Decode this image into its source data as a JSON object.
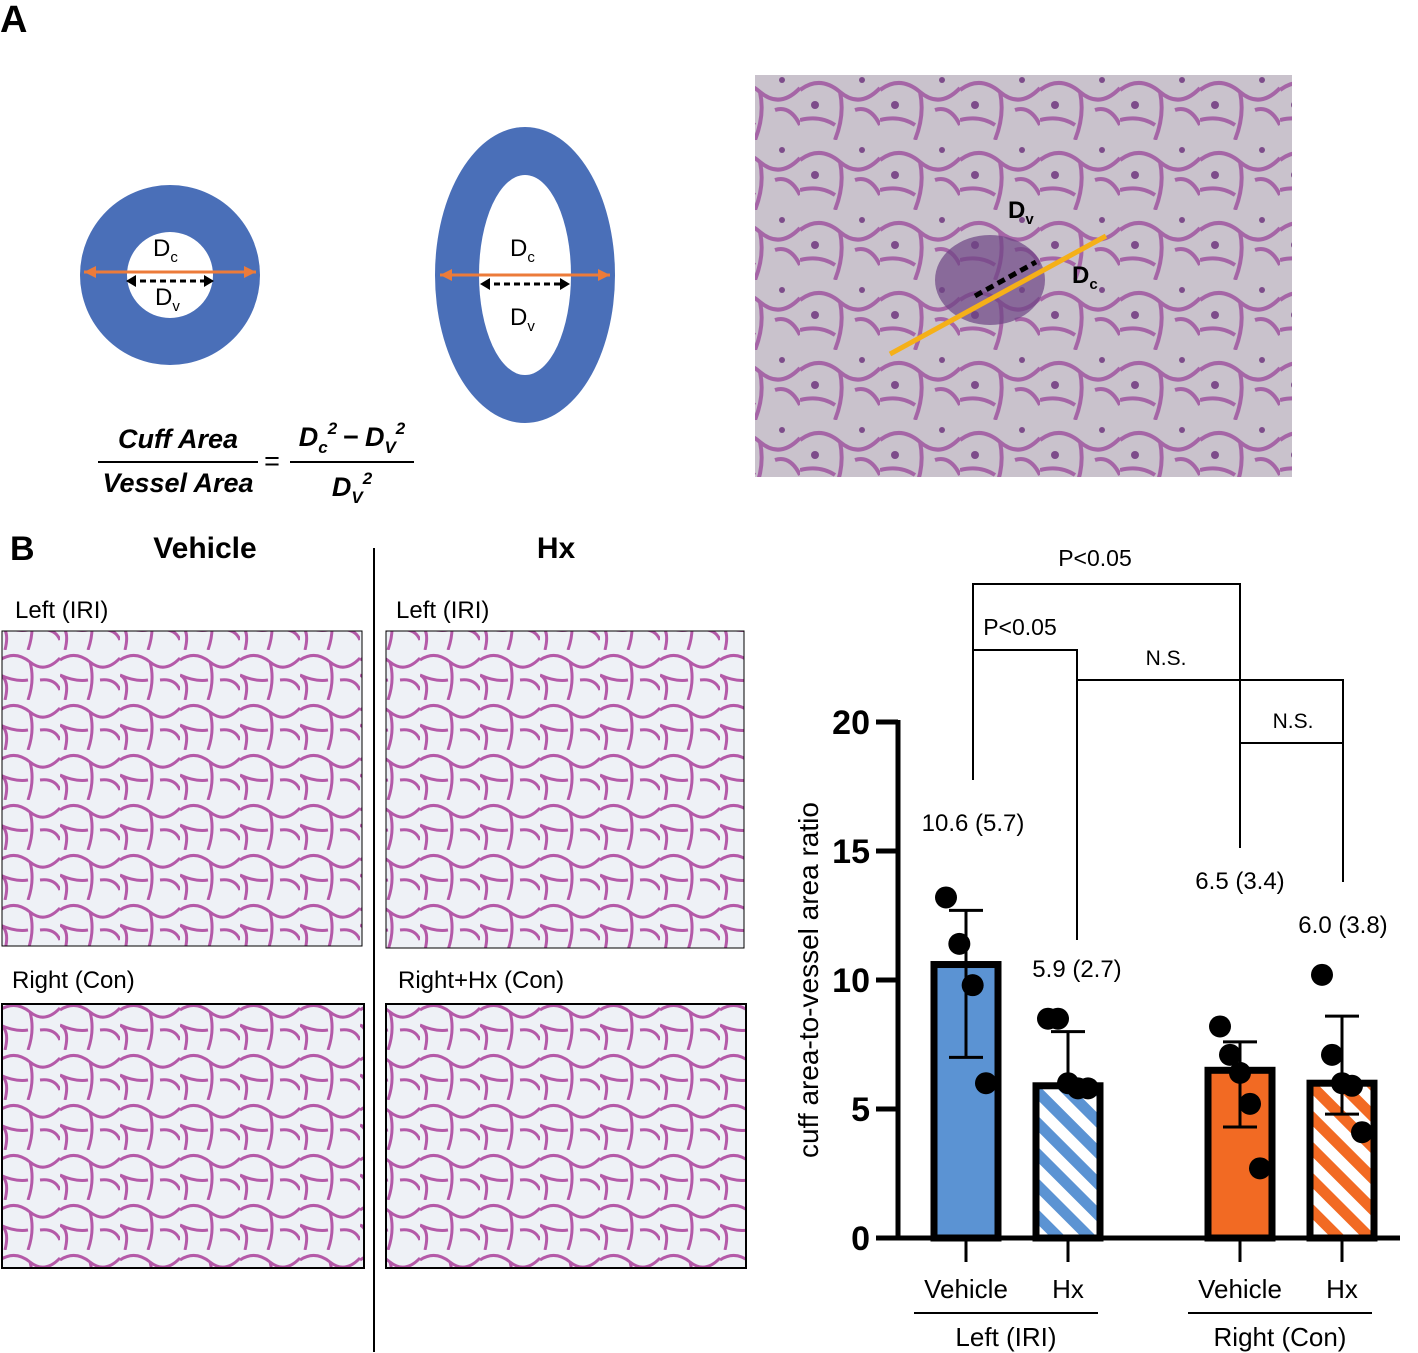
{
  "panel_a": {
    "label": "A",
    "circle_dc": {
      "main": "D",
      "sub": "c"
    },
    "circle_dv": {
      "main": "D",
      "sub": "v"
    },
    "ellipse_dc": {
      "main": "D",
      "sub": "c"
    },
    "ellipse_dv": {
      "main": "D",
      "sub": "v"
    },
    "micrograph_dv": {
      "main": "D",
      "sub": "v"
    },
    "micrograph_dc": {
      "main": "D",
      "sub": "c"
    },
    "formula": {
      "left_numerator": "Cuff Area",
      "left_denominator": "Vessel Area",
      "equals": "=",
      "right_numerator": [
        {
          "main": "D",
          "sub": "c",
          "sup": "2"
        },
        "−",
        {
          "main": "D",
          "sub": "V",
          "sup": "2"
        }
      ],
      "right_denominator": {
        "main": "D",
        "sub": "V",
        "sup": "2"
      }
    }
  },
  "panel_b": {
    "label": "B",
    "columns": [
      "Vehicle",
      "Hx"
    ],
    "images": [
      "Left (IRI)",
      "Left (IRI)",
      "Right (Con)",
      "Right+Hx (Con)"
    ]
  },
  "chart_data": {
    "type": "bar",
    "y_label": "cuff area-to-vessel area ratio",
    "categories": [
      "Vehicle",
      "Hx",
      "Vehicle",
      "Hx"
    ],
    "groups": [
      {
        "name": "Left (IRI)",
        "span": [
          0,
          1
        ]
      },
      {
        "name": "Right (Con)",
        "span": [
          2,
          3
        ]
      }
    ],
    "values": [
      10.6,
      5.9,
      6.5,
      6.0
    ],
    "value_labels": [
      "10.6 (5.7)",
      "5.9 (2.7)",
      "6.5 (3.4)",
      "6.0 (3.8)"
    ],
    "error_bars": [
      [
        7.0,
        12.7
      ],
      [
        5.9,
        8.0
      ],
      [
        4.3,
        7.6
      ],
      [
        4.8,
        8.6
      ]
    ],
    "points": [
      [
        13.2,
        11.4,
        9.8,
        6.0
      ],
      [
        8.5,
        8.5,
        6.0,
        5.8,
        5.8
      ],
      [
        8.2,
        7.1,
        6.4,
        5.2,
        2.7
      ],
      [
        10.2,
        7.1,
        6.0,
        5.9,
        4.1
      ]
    ],
    "colors": [
      "#5b93d3",
      "#5b93d3",
      "#f26a23",
      "#f26a23"
    ],
    "hatched": [
      false,
      true,
      false,
      true
    ],
    "ylim": [
      0,
      20
    ],
    "yticks": [
      0,
      5,
      10,
      15,
      20
    ],
    "annotations": [
      "P<0.05",
      "P<0.05",
      "N.S.",
      "N.S."
    ]
  }
}
